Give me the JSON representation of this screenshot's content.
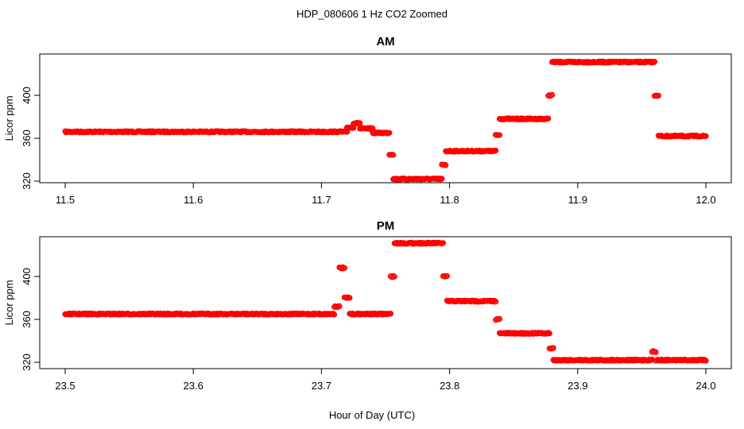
{
  "title": "HDP_080606  1 Hz CO2 Zoomed",
  "xlabel": "Hour of Day (UTC)",
  "chart_data": [
    {
      "type": "scatter",
      "title": "AM",
      "ylabel": "Licor ppm",
      "xlim": [
        11.5,
        12.0
      ],
      "ylim": [
        314,
        440
      ],
      "xticks": [
        "11.5",
        "11.6",
        "11.7",
        "11.8",
        "11.9",
        "12.0"
      ],
      "yticks": [
        "320",
        "360",
        "400"
      ],
      "series": [
        {
          "color": "#ff0000",
          "segments": [
            {
              "from": 11.5,
              "to": 11.72,
              "value": 366
            },
            {
              "from": 11.72,
              "to": 11.725,
              "value": 370
            },
            {
              "from": 11.725,
              "to": 11.73,
              "value": 374
            },
            {
              "from": 11.73,
              "to": 11.74,
              "value": 369
            },
            {
              "from": 11.74,
              "to": 11.753,
              "value": 365
            },
            {
              "from": 11.753,
              "to": 11.756,
              "value": 345
            },
            {
              "from": 11.756,
              "to": 11.794,
              "value": 322
            },
            {
              "from": 11.794,
              "to": 11.797,
              "value": 335
            },
            {
              "from": 11.797,
              "to": 11.836,
              "value": 348
            },
            {
              "from": 11.836,
              "to": 11.839,
              "value": 363
            },
            {
              "from": 11.839,
              "to": 11.877,
              "value": 378
            },
            {
              "from": 11.877,
              "to": 11.88,
              "value": 400
            },
            {
              "from": 11.88,
              "to": 11.96,
              "value": 431
            },
            {
              "from": 11.96,
              "to": 11.963,
              "value": 400
            },
            {
              "from": 11.963,
              "to": 12.0,
              "value": 362
            }
          ]
        }
      ]
    },
    {
      "type": "scatter",
      "title": "PM",
      "ylabel": "Licor ppm",
      "xlim": [
        23.5,
        24.0
      ],
      "ylim": [
        314,
        440
      ],
      "xticks": [
        "23.5",
        "23.6",
        "23.7",
        "23.8",
        "23.9",
        "24.0"
      ],
      "yticks": [
        "320",
        "360",
        "400"
      ],
      "series": [
        {
          "color": "#ff0000",
          "segments": [
            {
              "from": 23.5,
              "to": 23.71,
              "value": 365
            },
            {
              "from": 23.71,
              "to": 23.714,
              "value": 372
            },
            {
              "from": 23.714,
              "to": 23.718,
              "value": 408
            },
            {
              "from": 23.718,
              "to": 23.722,
              "value": 380
            },
            {
              "from": 23.722,
              "to": 23.754,
              "value": 365
            },
            {
              "from": 23.754,
              "to": 23.757,
              "value": 400
            },
            {
              "from": 23.757,
              "to": 23.795,
              "value": 431
            },
            {
              "from": 23.795,
              "to": 23.798,
              "value": 400
            },
            {
              "from": 23.798,
              "to": 23.836,
              "value": 377
            },
            {
              "from": 23.836,
              "to": 23.839,
              "value": 360
            },
            {
              "from": 23.839,
              "to": 23.878,
              "value": 347
            },
            {
              "from": 23.878,
              "to": 23.881,
              "value": 333
            },
            {
              "from": 23.881,
              "to": 23.958,
              "value": 322
            },
            {
              "from": 23.958,
              "to": 23.961,
              "value": 330
            },
            {
              "from": 23.961,
              "to": 24.0,
              "value": 322
            }
          ]
        }
      ]
    }
  ]
}
